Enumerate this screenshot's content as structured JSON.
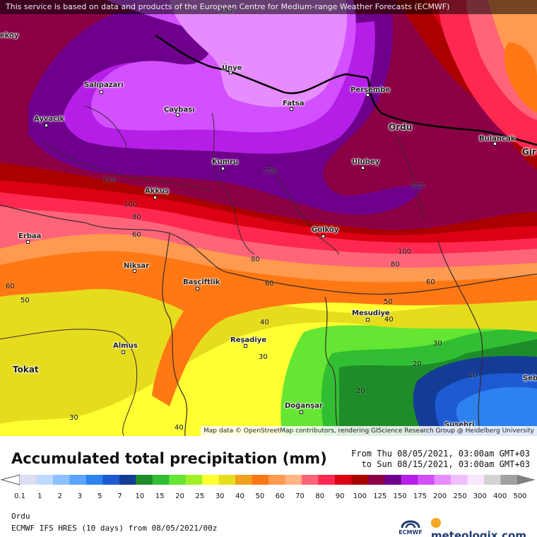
{
  "header": {
    "attribution": "This service is based on data and products of the European Centre for Medium-range Weather Forecasts (ECMWF)"
  },
  "map": {
    "osm_attribution": "Map data © OpenStreetMap contributors, rendering GIScience Research Group @ Heidelberg University",
    "cities": [
      {
        "name": "Ünye"
      },
      {
        "name": "Salıpazarı"
      },
      {
        "name": "Çaybaşı"
      },
      {
        "name": "Fatsa"
      },
      {
        "name": "Perşembe"
      },
      {
        "name": "Ayvacık"
      },
      {
        "name": "Ordu"
      },
      {
        "name": "Bulancak"
      },
      {
        "name": "Kumru"
      },
      {
        "name": "Ulubey"
      },
      {
        "name": "Akkuş"
      },
      {
        "name": "Gölköy"
      },
      {
        "name": "Erbaa"
      },
      {
        "name": "Niksar"
      },
      {
        "name": "Başçiftlik"
      },
      {
        "name": "Mesudiye"
      },
      {
        "name": "Almus"
      },
      {
        "name": "Reşadiye"
      },
      {
        "name": "Tokat"
      },
      {
        "name": "Doğanşar"
      },
      {
        "name": "Suşehri"
      },
      {
        "name": "Gir"
      },
      {
        "name": "Şeb"
      },
      {
        "name": "ekoy"
      }
    ],
    "contour_labels": [
      "150",
      "150",
      "150",
      "100",
      "80",
      "60",
      "60",
      "80",
      "60",
      "100",
      "80",
      "60",
      "50",
      "50",
      "40",
      "40",
      "30",
      "30",
      "20",
      "20",
      "10",
      "30",
      "40",
      "252"
    ]
  },
  "legend": {
    "title": "Accumulated total precipitation (mm)",
    "from": "From Thu 08/05/2021, 03:00am GMT+03",
    "to": "to Sun 08/15/2021, 03:00am GMT+03",
    "colors": [
      "#dcdcf2",
      "#bed8ff",
      "#8cc2ff",
      "#5aa4ff",
      "#2e82f0",
      "#1e5ad2",
      "#143c96",
      "#1e8c28",
      "#32be32",
      "#64e632",
      "#a0f028",
      "#ffff32",
      "#e6dc1e",
      "#f0a01e",
      "#ff7814",
      "#ff9a50",
      "#ffb482",
      "#ff6478",
      "#ff2850",
      "#dc0014",
      "#aa0000",
      "#8c0046",
      "#6e008c",
      "#b41ee6",
      "#d250ff",
      "#e68cff",
      "#f0beff",
      "#fae6ff",
      "#d2d2d2",
      "#a0a0a0"
    ],
    "ticks": [
      "0.1",
      "1",
      "2",
      "3",
      "5",
      "7",
      "10",
      "15",
      "20",
      "25",
      "30",
      "40",
      "50",
      "60",
      "70",
      "80",
      "90",
      "100",
      "125",
      "150",
      "175",
      "200",
      "250",
      "300",
      "400",
      "500"
    ]
  },
  "footer": {
    "location": "Ordu",
    "model": "ECMWF IFS HRES (10 days) from 08/05/2021/00z",
    "ecmwf_logo": "ECMWF",
    "brand": "meteologix.com"
  }
}
